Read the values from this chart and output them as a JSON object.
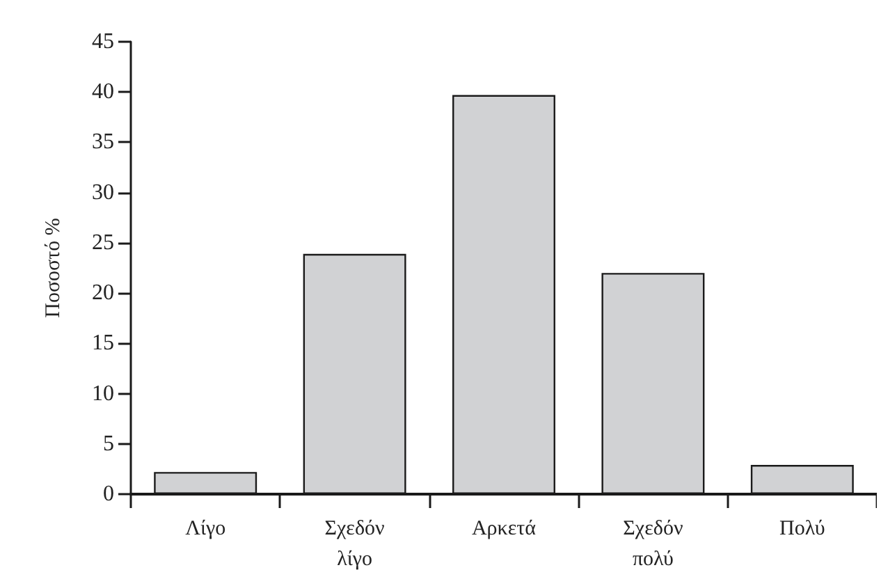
{
  "chart_data": {
    "type": "bar",
    "ylabel": "Ποσοστό %",
    "categories": [
      "Λίγο",
      "Σχεδόν λίγο",
      "Αρκετά",
      "Σχεδόν πολύ",
      "Πολύ"
    ],
    "values": [
      2.2,
      23.9,
      39.7,
      22.0,
      2.9
    ],
    "color": "#d1d2d4",
    "ylim": [
      0,
      45
    ],
    "yticks": [
      0,
      5,
      10,
      15,
      20,
      25,
      30,
      35,
      40,
      45
    ],
    "grid": false
  }
}
